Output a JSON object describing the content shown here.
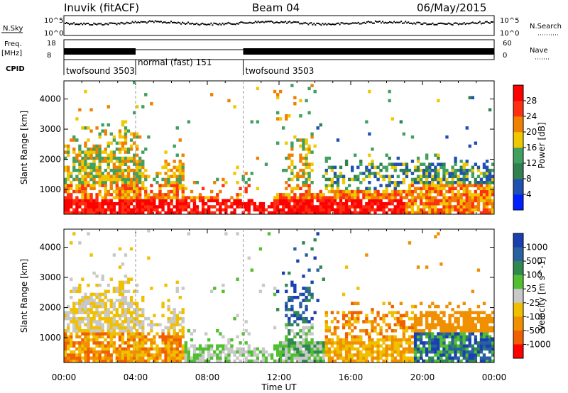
{
  "header": {
    "station": "Inuvik (fitACF)",
    "beam": "Beam 04",
    "date": "06/May/2015"
  },
  "panels": {
    "nsky_label": "N.Sky",
    "nsearch_label": "N.Search",
    "freq_label": "Freq.",
    "freq_unit": "[MHz]",
    "nave_label": "Nave",
    "cpid_label": "CPID",
    "nsky_ticks": [
      "10^5",
      "10^0"
    ],
    "nsearch_ticks": [
      "10^5",
      "10^0"
    ],
    "freq_ticks": [
      "18",
      "8"
    ],
    "nave_ticks": [
      "60",
      "0"
    ],
    "cpid_segments": [
      {
        "label": "twofsound 3503",
        "start": 0,
        "end": 4
      },
      {
        "label": "normal (fast) 151",
        "start": 4,
        "end": 10
      },
      {
        "label": "twofsound 3503",
        "start": 10,
        "end": 24
      }
    ]
  },
  "chart_data": [
    {
      "type": "heatmap",
      "quantity": "power",
      "ylabel": "Slant Range [km]",
      "xlabel": "Time UT",
      "x_tick_labels": [
        "00:00",
        "04:00",
        "08:00",
        "12:00",
        "16:00",
        "20:00",
        "00:00"
      ],
      "xlim_hours": [
        0,
        24
      ],
      "ylim": [
        180,
        4600
      ],
      "y_ticks": [
        1000,
        2000,
        3000,
        4000
      ],
      "colorbar": {
        "label": "Power [dB]",
        "tick_labels": [
          "4",
          "8",
          "12",
          "16",
          "20",
          "24",
          "28"
        ],
        "colors": [
          "#0020ff",
          "#2050b0",
          "#308050",
          "#40a060",
          "#f0c800",
          "#f08000",
          "#ff3010",
          "#ff0000"
        ]
      }
    },
    {
      "type": "heatmap",
      "quantity": "velocity",
      "ylabel": "Slant Range [km]",
      "xlabel": "Time UT",
      "x_tick_labels": [
        "00:00",
        "04:00",
        "08:00",
        "12:00",
        "16:00",
        "20:00",
        "00:00"
      ],
      "xlim_hours": [
        0,
        24
      ],
      "ylim": [
        180,
        4600
      ],
      "y_ticks": [
        1000,
        2000,
        3000,
        4000
      ],
      "colorbar": {
        "label": "Velocity [m s^-1]",
        "tick_labels": [
          "1000",
          "500",
          "100",
          "25",
          "-25",
          "-100",
          "-500",
          "-1000"
        ],
        "colors": [
          "#1a3fb0",
          "#2860a0",
          "#308850",
          "#50c030",
          "#c8c8c8",
          "#f0c000",
          "#f09000",
          "#f06000",
          "#ff0000"
        ]
      }
    }
  ]
}
